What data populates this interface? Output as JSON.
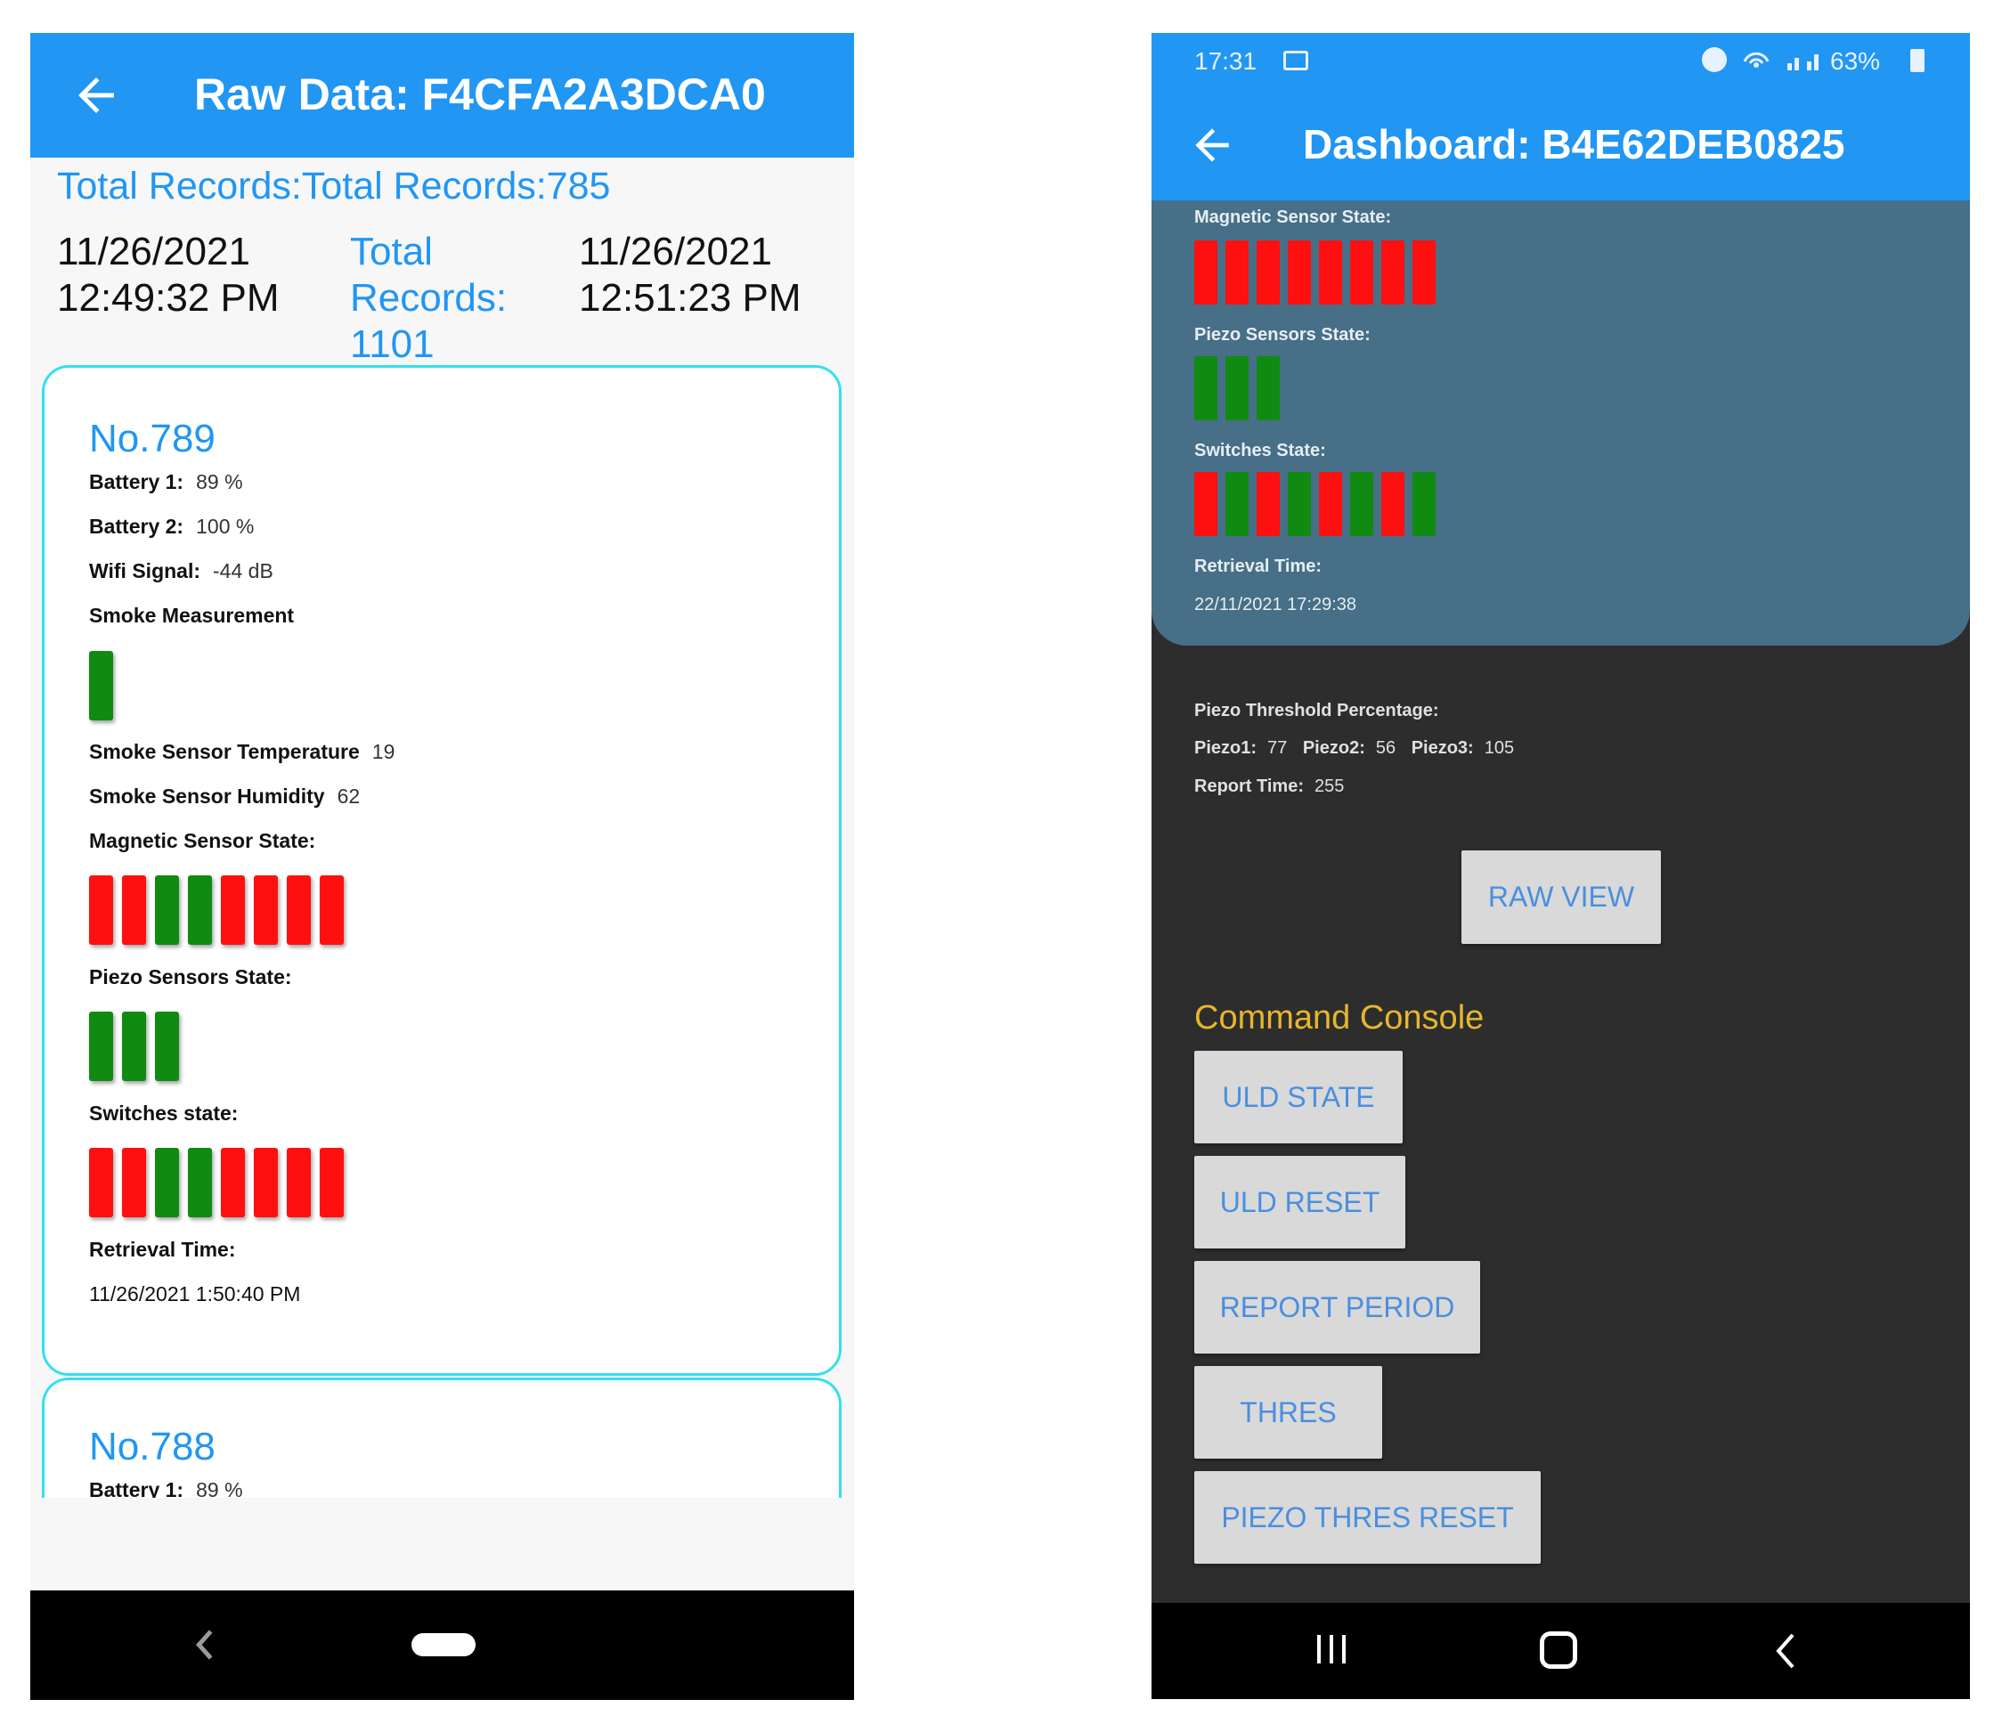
{
  "left": {
    "title": "Raw Data: F4CFA2A3DCA0",
    "total_records": "Total Records:Total Records:785",
    "start_date": "11/26/2021",
    "start_time": "12:49:32 PM",
    "mid_label_1": "Total",
    "mid_label_2": "Records:",
    "mid_label_3": "1101",
    "end_date": "11/26/2021",
    "end_time": "12:51:23 PM",
    "records": [
      {
        "number": "No.789",
        "battery1_label": "Battery 1:",
        "battery1_value": "89  %",
        "battery2_label": "Battery 2:",
        "battery2_value": "100  %",
        "wifi_label": "Wifi Signal:",
        "wifi_value": "-44  dB",
        "smoke_label": "Smoke Measurement",
        "smoke_bars": [
          "green"
        ],
        "temp_label": "Smoke Sensor Temperature",
        "temp_value": "19",
        "humidity_label": "Smoke Sensor Humidity",
        "humidity_value": "62",
        "magnetic_label": "Magnetic Sensor State:",
        "magnetic_bars": [
          "red",
          "red",
          "green",
          "green",
          "red",
          "red",
          "red",
          "red"
        ],
        "piezo_label": "Piezo Sensors State:",
        "piezo_bars": [
          "green",
          "green",
          "green"
        ],
        "switches_label": "Switches state:",
        "switches_bars": [
          "red",
          "red",
          "green",
          "green",
          "red",
          "red",
          "red",
          "red"
        ],
        "retrieval_label": "Retrieval Time:",
        "retrieval_value": "11/26/2021 1:50:40 PM"
      },
      {
        "number": "No.788",
        "battery1_label": "Battery 1:",
        "battery1_value": "89  %"
      }
    ]
  },
  "right": {
    "status_time": "17:31",
    "status_battery": "63%",
    "title": "Dashboard: B4E62DEB0825",
    "magnetic_label": "Magnetic Sensor State:",
    "magnetic_bars": [
      "red",
      "red",
      "red",
      "red",
      "red",
      "red",
      "red",
      "red"
    ],
    "piezo_label": "Piezo Sensors State:",
    "piezo_bars": [
      "green",
      "green",
      "green"
    ],
    "switches_label": "Switches State:",
    "switches_bars": [
      "red",
      "green",
      "red",
      "green",
      "red",
      "green",
      "red",
      "green"
    ],
    "retrieval_label": "Retrieval Time:",
    "retrieval_value": "22/11/2021 17:29:38",
    "threshold_label": "Piezo Threshold Percentage:",
    "piezo1_label": "Piezo1:",
    "piezo1_value": "77",
    "piezo2_label": "Piezo2:",
    "piezo2_value": "56",
    "piezo3_label": "Piezo3:",
    "piezo3_value": "105",
    "report_label": "Report Time:",
    "report_value": "255",
    "raw_view_button": "RAW VIEW",
    "console_title": "Command Console",
    "buttons": [
      "ULD STATE",
      "ULD RESET",
      "REPORT PERIOD",
      "THRES",
      "PIEZO THRES RESET"
    ]
  },
  "colors": {
    "primary": "#2196f3",
    "card_border": "#33e0f0",
    "state_on": "#ff1010",
    "state_off": "#118a11",
    "dashboard_card": "#476f87",
    "console_title": "#e6b62e"
  }
}
